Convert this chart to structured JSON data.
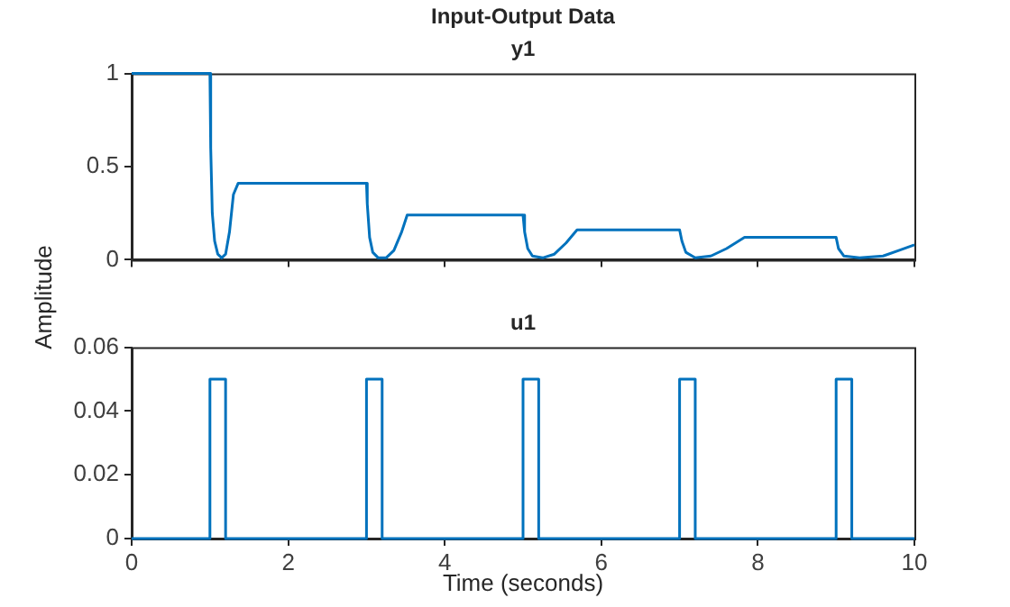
{
  "chart_data": [
    {
      "type": "line",
      "title": "Input-Output Data",
      "subtitle": "y1",
      "ylabel": "Amplitude",
      "color": "#0072bd",
      "x": [
        0,
        1,
        1.01,
        1.03,
        1.06,
        1.1,
        1.15,
        1.2,
        1.25,
        1.3,
        1.36,
        3,
        3.01,
        3.04,
        3.08,
        3.15,
        3.25,
        3.35,
        3.45,
        3.52,
        5,
        5.02,
        5.06,
        5.12,
        5.25,
        5.4,
        5.55,
        5.69,
        7,
        7.03,
        7.08,
        7.2,
        7.4,
        7.6,
        7.83,
        9,
        9.03,
        9.1,
        9.3,
        9.6,
        9.8,
        10
      ],
      "values": [
        1,
        1,
        0.6,
        0.25,
        0.1,
        0.03,
        0.01,
        0.03,
        0.15,
        0.35,
        0.41,
        0.41,
        0.3,
        0.12,
        0.04,
        0.01,
        0.01,
        0.05,
        0.15,
        0.24,
        0.24,
        0.15,
        0.06,
        0.02,
        0.01,
        0.03,
        0.09,
        0.16,
        0.16,
        0.1,
        0.04,
        0.01,
        0.02,
        0.06,
        0.12,
        0.12,
        0.06,
        0.02,
        0.01,
        0.02,
        0.05,
        0.08
      ],
      "xlim": [
        0,
        10
      ],
      "xticks": [
        0,
        2,
        4,
        6,
        8,
        10
      ],
      "ylim": [
        0,
        1
      ],
      "yticks": [
        0,
        0.5,
        1
      ],
      "tick_labels": "y"
    },
    {
      "type": "step",
      "title": "u1",
      "xlabel": "Time (seconds)",
      "color": "#0072bd",
      "x": [
        0,
        1,
        1.2,
        3,
        3.2,
        5,
        5.2,
        7,
        7.2,
        9,
        9.2,
        10
      ],
      "values": [
        0,
        0.05,
        0,
        0.05,
        0,
        0.05,
        0,
        0.05,
        0,
        0.05,
        0,
        0
      ],
      "xlim": [
        0,
        10
      ],
      "xticks": [
        0,
        2,
        4,
        6,
        8,
        10
      ],
      "ylim": [
        0,
        0.06
      ],
      "yticks": [
        0,
        0.02,
        0.04,
        0.06
      ]
    }
  ]
}
